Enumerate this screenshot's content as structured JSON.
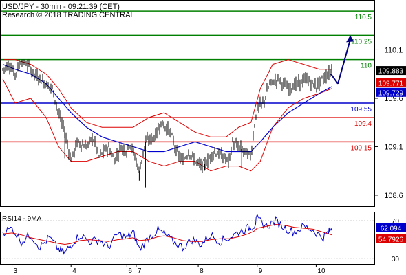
{
  "header": {
    "line1": "USD/JPY - 30min - 09:21:39 (CET)",
    "line2": "Research © 2018 TRADING CENTRAL"
  },
  "rsi_panel": {
    "title": "RSI14 - 9MA"
  },
  "chart_data": [
    {
      "type": "candlestick",
      "symbol": "USD/JPY",
      "timeframe": "30min",
      "ylim": [
        108.5,
        110.6
      ],
      "y_ticks": [
        110.1,
        109.6,
        109.1,
        108.6
      ],
      "y_tick_labels": [
        "110.1",
        "109.6",
        "109.1",
        "108.6"
      ],
      "x_ticks": [
        {
          "label": "3",
          "x": 0.15
        },
        {
          "label": "4",
          "x": 1.1
        },
        {
          "label": "6",
          "x": 2.0
        },
        {
          "label": "7",
          "x": 2.15
        },
        {
          "label": "8",
          "x": 3.15
        },
        {
          "label": "9",
          "x": 4.1
        },
        {
          "label": "10",
          "x": 5.05
        }
      ],
      "levels": [
        {
          "value": 110.5,
          "label": "110.5",
          "color": "#008000"
        },
        {
          "value": 110.25,
          "label": "110.25",
          "color": "#008000"
        },
        {
          "value": 110.0,
          "label": "110",
          "color": "#008000"
        },
        {
          "value": 109.55,
          "label": "109.55",
          "color": "#0000cc"
        },
        {
          "value": 109.4,
          "label": "109.4",
          "color": "#dd0000"
        },
        {
          "value": 109.15,
          "label": "109.15",
          "color": "#dd0000"
        }
      ],
      "price_tags": [
        {
          "value": 109.883,
          "label": "109.883",
          "bg": "#000000",
          "fg": "#ffffff"
        },
        {
          "value": 109.771,
          "label": "109.771",
          "bg": "#dd0000",
          "fg": "#ffffff"
        },
        {
          "value": 109.729,
          "label": "109.729",
          "bg": "#0000cc",
          "fg": "#ffffff"
        }
      ],
      "forecast_arrow": {
        "from": [
          5.4,
          109.75
        ],
        "to": [
          5.6,
          110.25
        ],
        "color": "#000080"
      },
      "bollinger_upper": [
        [
          0,
          110.0
        ],
        [
          0.2,
          110.0
        ],
        [
          0.45,
          109.95
        ],
        [
          0.7,
          109.85
        ],
        [
          0.9,
          109.7
        ],
        [
          1.1,
          109.5
        ],
        [
          1.35,
          109.35
        ],
        [
          1.6,
          109.3
        ],
        [
          1.85,
          109.3
        ],
        [
          2.1,
          109.3
        ],
        [
          2.35,
          109.4
        ],
        [
          2.6,
          109.45
        ],
        [
          2.85,
          109.35
        ],
        [
          3.1,
          109.25
        ],
        [
          3.35,
          109.2
        ],
        [
          3.6,
          109.2
        ],
        [
          3.8,
          109.3
        ],
        [
          4.0,
          109.35
        ],
        [
          4.15,
          109.7
        ],
        [
          4.35,
          109.95
        ],
        [
          4.6,
          110.0
        ],
        [
          4.85,
          109.95
        ],
        [
          5.1,
          109.9
        ],
        [
          5.3,
          109.9
        ]
      ],
      "bollinger_lower": [
        [
          0,
          109.8
        ],
        [
          0.2,
          109.55
        ],
        [
          0.45,
          109.6
        ],
        [
          0.7,
          109.4
        ],
        [
          0.9,
          109.1
        ],
        [
          1.1,
          108.95
        ],
        [
          1.35,
          108.95
        ],
        [
          1.6,
          109.0
        ],
        [
          1.85,
          109.05
        ],
        [
          2.1,
          109.05
        ],
        [
          2.35,
          108.95
        ],
        [
          2.6,
          108.9
        ],
        [
          2.85,
          108.95
        ],
        [
          3.1,
          108.95
        ],
        [
          3.35,
          108.85
        ],
        [
          3.6,
          108.9
        ],
        [
          3.8,
          108.9
        ],
        [
          4.0,
          108.85
        ],
        [
          4.15,
          108.95
        ],
        [
          4.35,
          109.3
        ],
        [
          4.6,
          109.5
        ],
        [
          4.85,
          109.6
        ],
        [
          5.1,
          109.65
        ],
        [
          5.3,
          109.7
        ]
      ],
      "ma_blue": [
        [
          0,
          109.95
        ],
        [
          0.2,
          109.9
        ],
        [
          0.45,
          109.85
        ],
        [
          0.7,
          109.75
        ],
        [
          0.9,
          109.6
        ],
        [
          1.1,
          109.45
        ],
        [
          1.35,
          109.3
        ],
        [
          1.6,
          109.2
        ],
        [
          1.85,
          109.15
        ],
        [
          2.1,
          109.1
        ],
        [
          2.35,
          109.05
        ],
        [
          2.6,
          109.05
        ],
        [
          2.85,
          109.1
        ],
        [
          3.1,
          109.15
        ],
        [
          3.35,
          109.1
        ],
        [
          3.6,
          109.05
        ],
        [
          3.8,
          109.05
        ],
        [
          4.0,
          109.05
        ],
        [
          4.15,
          109.15
        ],
        [
          4.35,
          109.3
        ],
        [
          4.6,
          109.45
        ],
        [
          4.85,
          109.55
        ],
        [
          5.1,
          109.65
        ],
        [
          5.3,
          109.72
        ]
      ],
      "candle_path": [
        [
          0,
          109.9
        ],
        [
          0.1,
          109.95
        ],
        [
          0.2,
          109.85
        ],
        [
          0.3,
          110.0
        ],
        [
          0.4,
          109.95
        ],
        [
          0.5,
          109.85
        ],
        [
          0.6,
          109.8
        ],
        [
          0.7,
          109.75
        ],
        [
          0.8,
          109.7
        ],
        [
          0.9,
          109.45
        ],
        [
          1.0,
          109.25
        ],
        [
          1.05,
          109.1
        ],
        [
          1.1,
          108.95
        ],
        [
          1.2,
          109.15
        ],
        [
          1.35,
          109.1
        ],
        [
          1.45,
          109.2
        ],
        [
          1.55,
          109.0
        ],
        [
          1.7,
          109.1
        ],
        [
          1.8,
          108.95
        ],
        [
          1.9,
          109.1
        ],
        [
          2.0,
          109.05
        ],
        [
          2.05,
          109.15
        ],
        [
          2.15,
          108.95
        ],
        [
          2.2,
          108.85
        ],
        [
          2.3,
          109.15
        ],
        [
          2.45,
          109.2
        ],
        [
          2.55,
          109.35
        ],
        [
          2.7,
          109.25
        ],
        [
          2.8,
          109.05
        ],
        [
          2.9,
          108.95
        ],
        [
          3.0,
          109.05
        ],
        [
          3.1,
          108.95
        ],
        [
          3.2,
          108.9
        ],
        [
          3.3,
          108.95
        ],
        [
          3.4,
          109.05
        ],
        [
          3.55,
          109.0
        ],
        [
          3.65,
          108.95
        ],
        [
          3.7,
          109.15
        ],
        [
          3.8,
          109.1
        ],
        [
          3.9,
          109.05
        ],
        [
          4.0,
          109.0
        ],
        [
          4.05,
          109.3
        ],
        [
          4.1,
          109.5
        ],
        [
          4.2,
          109.55
        ],
        [
          4.3,
          109.75
        ],
        [
          4.45,
          109.8
        ],
        [
          4.6,
          109.7
        ],
        [
          4.75,
          109.75
        ],
        [
          4.9,
          109.8
        ],
        [
          5.05,
          109.72
        ],
        [
          5.15,
          109.8
        ],
        [
          5.25,
          109.85
        ],
        [
          5.3,
          109.9
        ]
      ],
      "candle_high": 110.0,
      "candle_low": 108.62
    },
    {
      "type": "line",
      "name": "RSI14 - 9MA",
      "ylim": [
        25,
        78
      ],
      "y_ticks": [
        70,
        30
      ],
      "y_tick_labels": [
        "70",
        "30"
      ],
      "tags": [
        {
          "value": 62.094,
          "label": "62.094",
          "bg": "#0000cc",
          "fg": "#ffffff"
        },
        {
          "value": 54.7926,
          "label": "54.7926",
          "bg": "#dd0000",
          "fg": "#ffffff"
        }
      ],
      "rsi": [
        [
          0,
          58
        ],
        [
          0.15,
          62
        ],
        [
          0.3,
          48
        ],
        [
          0.45,
          55
        ],
        [
          0.6,
          42
        ],
        [
          0.75,
          52
        ],
        [
          0.9,
          40
        ],
        [
          1.0,
          36
        ],
        [
          1.1,
          45
        ],
        [
          1.25,
          55
        ],
        [
          1.4,
          48
        ],
        [
          1.55,
          50
        ],
        [
          1.7,
          42
        ],
        [
          1.85,
          56
        ],
        [
          2.0,
          52
        ],
        [
          2.1,
          58
        ],
        [
          2.2,
          40
        ],
        [
          2.35,
          52
        ],
        [
          2.5,
          60
        ],
        [
          2.6,
          56
        ],
        [
          2.75,
          48
        ],
        [
          2.9,
          42
        ],
        [
          3.05,
          50
        ],
        [
          3.2,
          45
        ],
        [
          3.35,
          55
        ],
        [
          3.5,
          48
        ],
        [
          3.65,
          52
        ],
        [
          3.8,
          58
        ],
        [
          3.95,
          62
        ],
        [
          4.05,
          65
        ],
        [
          4.1,
          72
        ],
        [
          4.25,
          64
        ],
        [
          4.4,
          70
        ],
        [
          4.55,
          62
        ],
        [
          4.7,
          58
        ],
        [
          4.85,
          64
        ],
        [
          5.0,
          60
        ],
        [
          5.15,
          52
        ],
        [
          5.25,
          58
        ],
        [
          5.3,
          62
        ]
      ],
      "rsi_ma": [
        [
          0,
          56
        ],
        [
          0.15,
          57
        ],
        [
          0.3,
          55
        ],
        [
          0.45,
          52
        ],
        [
          0.6,
          50
        ],
        [
          0.75,
          48
        ],
        [
          0.9,
          46
        ],
        [
          1.0,
          45
        ],
        [
          1.1,
          46
        ],
        [
          1.25,
          49
        ],
        [
          1.4,
          50
        ],
        [
          1.55,
          49
        ],
        [
          1.7,
          48
        ],
        [
          1.85,
          50
        ],
        [
          2.0,
          51
        ],
        [
          2.1,
          52
        ],
        [
          2.2,
          49
        ],
        [
          2.35,
          50
        ],
        [
          2.5,
          53
        ],
        [
          2.6,
          54
        ],
        [
          2.75,
          52
        ],
        [
          2.9,
          49
        ],
        [
          3.05,
          48
        ],
        [
          3.2,
          48
        ],
        [
          3.35,
          50
        ],
        [
          3.5,
          51
        ],
        [
          3.65,
          51
        ],
        [
          3.8,
          53
        ],
        [
          3.95,
          56
        ],
        [
          4.05,
          59
        ],
        [
          4.1,
          62
        ],
        [
          4.25,
          64
        ],
        [
          4.4,
          66
        ],
        [
          4.55,
          65
        ],
        [
          4.7,
          63
        ],
        [
          4.85,
          62
        ],
        [
          5.0,
          61
        ],
        [
          5.15,
          58
        ],
        [
          5.25,
          56
        ],
        [
          5.3,
          55
        ]
      ]
    }
  ]
}
